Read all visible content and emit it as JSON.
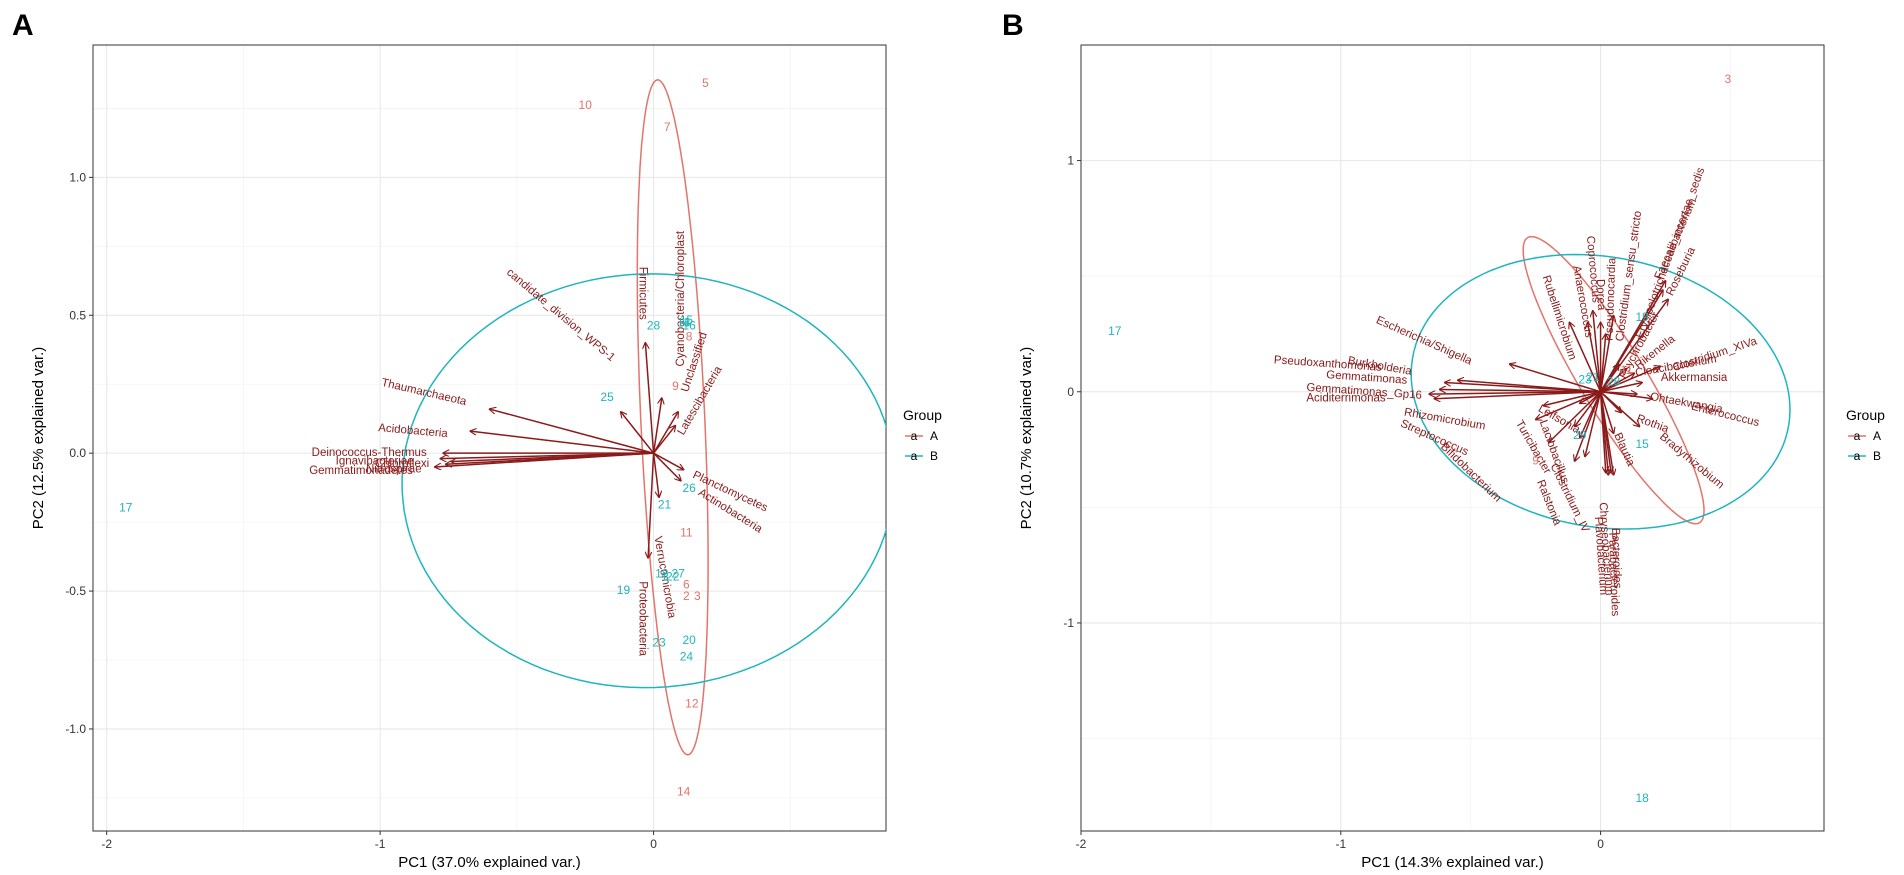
{
  "colors": {
    "groupA": "#E3746B",
    "groupB": "#1FB5BD",
    "loading": "#8B1A1A"
  },
  "legend": {
    "title": "Group",
    "items": [
      {
        "symbol": "a",
        "label": "A",
        "color": "#E3746B"
      },
      {
        "symbol": "a",
        "label": "B",
        "color": "#1FB5BD"
      }
    ]
  },
  "chart_data": [
    {
      "type": "scatter",
      "panel_label": "A",
      "xlabel": "PC1 (37.0% explained var.)",
      "ylabel": "PC2 (12.5% explained var.)",
      "xlim": [
        -2.05,
        0.85
      ],
      "ylim": [
        -1.37,
        1.48
      ],
      "xticks": [
        -2,
        -1,
        0
      ],
      "xtick_labels": [
        "-2",
        "-1",
        "0"
      ],
      "yticks": [
        -1.0,
        -0.5,
        0.0,
        0.5,
        1.0
      ],
      "ytick_labels": [
        "-1.0",
        "-0.5",
        "0.0",
        "0.5",
        "1.0"
      ],
      "points": [
        {
          "label": "1",
          "group": "B",
          "x": 0.04,
          "y": -0.45
        },
        {
          "label": "2",
          "group": "A",
          "x": 0.12,
          "y": -0.52
        },
        {
          "label": "3",
          "group": "A",
          "x": 0.16,
          "y": -0.52
        },
        {
          "label": "4",
          "group": "B",
          "x": 0.12,
          "y": 0.47
        },
        {
          "label": "5",
          "group": "A",
          "x": 0.19,
          "y": 1.34
        },
        {
          "label": "6",
          "group": "A",
          "x": 0.12,
          "y": -0.48
        },
        {
          "label": "7",
          "group": "A",
          "x": 0.05,
          "y": 1.18
        },
        {
          "label": "8",
          "group": "A",
          "x": 0.13,
          "y": 0.42
        },
        {
          "label": "9",
          "group": "A",
          "x": 0.08,
          "y": 0.24
        },
        {
          "label": "10",
          "group": "A",
          "x": -0.25,
          "y": 1.26
        },
        {
          "label": "11",
          "group": "A",
          "x": 0.12,
          "y": -0.29
        },
        {
          "label": "12",
          "group": "A",
          "x": 0.14,
          "y": -0.91
        },
        {
          "label": "13",
          "group": "B",
          "x": 0.11,
          "y": 0.47
        },
        {
          "label": "14",
          "group": "A",
          "x": 0.11,
          "y": -1.23
        },
        {
          "label": "15",
          "group": "B",
          "x": 0.12,
          "y": 0.48
        },
        {
          "label": "16",
          "group": "B",
          "x": 0.13,
          "y": 0.46
        },
        {
          "label": "17",
          "group": "B",
          "x": -1.93,
          "y": -0.2
        },
        {
          "label": "18",
          "group": "B",
          "x": 0.03,
          "y": -0.44
        },
        {
          "label": "19",
          "group": "B",
          "x": -0.11,
          "y": -0.5
        },
        {
          "label": "20",
          "group": "B",
          "x": 0.13,
          "y": -0.68
        },
        {
          "label": "21",
          "group": "B",
          "x": 0.04,
          "y": -0.19
        },
        {
          "label": "22",
          "group": "B",
          "x": 0.07,
          "y": -0.45
        },
        {
          "label": "23",
          "group": "B",
          "x": 0.02,
          "y": -0.69
        },
        {
          "label": "24",
          "group": "B",
          "x": 0.12,
          "y": -0.74
        },
        {
          "label": "25",
          "group": "B",
          "x": -0.17,
          "y": 0.2
        },
        {
          "label": "26",
          "group": "B",
          "x": 0.13,
          "y": -0.13
        },
        {
          "label": "27",
          "group": "B",
          "x": 0.09,
          "y": -0.44
        },
        {
          "label": "28",
          "group": "B",
          "x": 0.0,
          "y": 0.46
        }
      ],
      "ellipses": [
        {
          "group": "A",
          "cx": 0.07,
          "cy": 0.13,
          "rx": 1.225,
          "ry": 0.117,
          "angle_deg": -87.4
        },
        {
          "group": "B",
          "cx": -0.02,
          "cy": -0.1,
          "rx": 0.9,
          "ry": 0.75,
          "angle_deg": 2
        }
      ],
      "loadings": [
        {
          "label": "candidate_division_WPS-1",
          "x": -0.12,
          "y": 0.15,
          "tx": -0.34,
          "ty": 0.5,
          "rot": 40
        },
        {
          "label": "Firmicutes",
          "x": -0.03,
          "y": 0.4,
          "tx": -0.04,
          "ty": 0.58,
          "rot": 90
        },
        {
          "label": "Cyanobacteria/Chloroplast",
          "x": 0.03,
          "y": 0.2,
          "tx": 0.1,
          "ty": 0.56,
          "rot": -90
        },
        {
          "label": "Unclassified",
          "x": 0.09,
          "y": 0.15,
          "tx": 0.15,
          "ty": 0.33,
          "rot": -72
        },
        {
          "label": "Latescibacteria",
          "x": 0.08,
          "y": 0.1,
          "tx": 0.17,
          "ty": 0.19,
          "rot": -60
        },
        {
          "label": "Thaumarchaeota",
          "x": -0.6,
          "y": 0.16,
          "tx": -0.84,
          "ty": 0.22,
          "rot": 13
        },
        {
          "label": "Acidobacteria",
          "x": -0.67,
          "y": 0.08,
          "tx": -0.88,
          "ty": 0.08,
          "rot": 5
        },
        {
          "label": "Deinococcus-Thermus",
          "x": -0.77,
          "y": 0.0,
          "tx": -1.04,
          "ty": 0.0,
          "rot": 0
        },
        {
          "label": "Ignavibacteriae",
          "x": -0.78,
          "y": -0.02,
          "tx": -1.02,
          "ty": -0.03,
          "rot": 0
        },
        {
          "label": "Gemmatimonadetes",
          "x": -0.8,
          "y": -0.05,
          "tx": -1.07,
          "ty": -0.065,
          "rot": 0
        },
        {
          "label": "Nitrospirae",
          "x": -0.76,
          "y": -0.04,
          "tx": -0.95,
          "ty": -0.06,
          "rot": 0
        },
        {
          "label": "Chloroflexi",
          "x": -0.74,
          "y": -0.03,
          "tx": -0.92,
          "ty": -0.04,
          "rot": 0
        },
        {
          "label": "Planctomycetes",
          "x": 0.11,
          "y": -0.06,
          "tx": 0.28,
          "ty": -0.14,
          "rot": 25
        },
        {
          "label": "Actinobacteria",
          "x": 0.1,
          "y": -0.1,
          "tx": 0.28,
          "ty": -0.21,
          "rot": 32
        },
        {
          "label": "Verrucomicrobia",
          "x": 0.02,
          "y": -0.16,
          "tx": 0.04,
          "ty": -0.45,
          "rot": 80
        },
        {
          "label": "Proteobacteria",
          "x": -0.02,
          "y": -0.38,
          "tx": -0.04,
          "ty": -0.6,
          "rot": 90
        }
      ]
    },
    {
      "type": "scatter",
      "panel_label": "B",
      "xlabel": "PC1 (14.3% explained var.)",
      "ylabel": "PC2 (10.7% explained var.)",
      "xlim": [
        -2.0,
        0.86
      ],
      "ylim": [
        -1.9,
        1.5
      ],
      "xticks": [
        -2,
        -1,
        0
      ],
      "xtick_labels": [
        "-2",
        "-1",
        "0"
      ],
      "yticks": [
        -1,
        0,
        1
      ],
      "ytick_labels": [
        "-1",
        "0",
        "1"
      ],
      "points": [
        {
          "label": "3",
          "group": "A",
          "x": 0.49,
          "y": 1.35
        },
        {
          "label": "17",
          "group": "B",
          "x": -1.87,
          "y": 0.26
        },
        {
          "label": "18",
          "group": "B",
          "x": 0.16,
          "y": -1.76
        },
        {
          "label": "9",
          "group": "A",
          "x": -0.25,
          "y": -0.3
        },
        {
          "label": "29",
          "group": "B",
          "x": -0.08,
          "y": -0.19
        },
        {
          "label": "15",
          "group": "B",
          "x": 0.16,
          "y": -0.23
        },
        {
          "label": "19",
          "group": "B",
          "x": 0.16,
          "y": 0.32
        },
        {
          "label": "11",
          "group": "A",
          "x": 0.1,
          "y": 0.09
        },
        {
          "label": "28",
          "group": "B",
          "x": 0.05,
          "y": 0.04
        },
        {
          "label": "23",
          "group": "B",
          "x": -0.06,
          "y": 0.05
        },
        {
          "label": "21",
          "group": "B",
          "x": -0.03,
          "y": 0.06
        }
      ],
      "ellipses": [
        {
          "group": "A",
          "cx": 0.05,
          "cy": 0.05,
          "rx": 0.7,
          "ry": 0.13,
          "angle_deg": -62
        },
        {
          "group": "B",
          "cx": 0.0,
          "cy": 0.0,
          "rx": 0.74,
          "ry": 0.58,
          "angle_deg": -16
        }
      ],
      "loadings": [
        {
          "label": "Clostridium_sensu_stricto",
          "x": 0.05,
          "y": 0.33,
          "tx": 0.11,
          "ty": 0.5,
          "rot": -82
        },
        {
          "label": "Erysipelotrichaceae_incertae_sedis",
          "x": 0.25,
          "y": 0.48,
          "tx": 0.27,
          "ty": 0.6,
          "rot": -70
        },
        {
          "label": "Faecalibacterium",
          "x": 0.24,
          "y": 0.44,
          "tx": 0.29,
          "ty": 0.66,
          "rot": -66
        },
        {
          "label": "Roseburia",
          "x": 0.26,
          "y": 0.4,
          "tx": 0.31,
          "ty": 0.52,
          "rot": -64
        },
        {
          "label": "Coprococcus",
          "x": -0.03,
          "y": 0.35,
          "tx": -0.03,
          "ty": 0.53,
          "rot": 85
        },
        {
          "label": "Anaerococcus",
          "x": -0.05,
          "y": 0.3,
          "tx": -0.07,
          "ty": 0.39,
          "rot": 80
        },
        {
          "label": "Rubellimicrobium",
          "x": -0.12,
          "y": 0.3,
          "tx": -0.16,
          "ty": 0.32,
          "rot": 72
        },
        {
          "label": "Dorea",
          "x": 0.0,
          "y": 0.3,
          "tx": 0.0,
          "ty": 0.42,
          "rot": 88
        },
        {
          "label": "Pseudonocardia",
          "x": 0.02,
          "y": 0.25,
          "tx": 0.04,
          "ty": 0.4,
          "rot": -88
        },
        {
          "label": "Escherichia/Shigella",
          "x": -0.35,
          "y": 0.12,
          "tx": -0.68,
          "ty": 0.22,
          "rot": 24
        },
        {
          "label": "Burkholderia",
          "x": -0.55,
          "y": 0.05,
          "tx": -0.85,
          "ty": 0.11,
          "rot": 10
        },
        {
          "label": "Pseudoxanthomonas",
          "x": -0.6,
          "y": 0.04,
          "tx": -1.05,
          "ty": 0.12,
          "rot": 4
        },
        {
          "label": "Gemmatimonas",
          "x": -0.62,
          "y": 0.01,
          "tx": -0.9,
          "ty": 0.06,
          "rot": 4
        },
        {
          "label": "Gemmatimonas_Gp16",
          "x": -0.66,
          "y": -0.01,
          "tx": -0.91,
          "ty": 0.0,
          "rot": 4
        },
        {
          "label": "Aciditerrimonas",
          "x": -0.64,
          "y": -0.03,
          "tx": -0.98,
          "ty": -0.03,
          "rot": 0
        },
        {
          "label": "Rhizomicrobium",
          "x": -0.22,
          "y": -0.06,
          "tx": -0.6,
          "ty": -0.12,
          "rot": 10
        },
        {
          "label": "Streptococcus",
          "x": -0.25,
          "y": -0.12,
          "tx": -0.64,
          "ty": -0.2,
          "rot": 24
        },
        {
          "label": "Bifidobacterium",
          "x": -0.2,
          "y": -0.22,
          "tx": -0.5,
          "ty": -0.35,
          "rot": 44
        },
        {
          "label": "Leifsonia",
          "x": -0.08,
          "y": -0.05,
          "tx": -0.16,
          "ty": -0.12,
          "rot": 30
        },
        {
          "label": "Lactobacillus",
          "x": -0.08,
          "y": -0.2,
          "tx": -0.18,
          "ty": -0.26,
          "rot": 70
        },
        {
          "label": "Turicibacter",
          "x": -0.1,
          "y": -0.15,
          "tx": -0.26,
          "ty": -0.24,
          "rot": 60
        },
        {
          "label": "Ralstonia",
          "x": -0.1,
          "y": -0.3,
          "tx": -0.2,
          "ty": -0.48,
          "rot": 68
        },
        {
          "label": "Clostridium_IV",
          "x": -0.06,
          "y": -0.28,
          "tx": -0.12,
          "ty": -0.46,
          "rot": 64
        },
        {
          "label": "Blautia",
          "x": 0.05,
          "y": -0.18,
          "tx": 0.09,
          "ty": -0.25,
          "rot": 66
        },
        {
          "label": "Rothia",
          "x": 0.08,
          "y": -0.09,
          "tx": 0.2,
          "ty": -0.14,
          "rot": 20
        },
        {
          "label": "Bradyrhizobium",
          "x": 0.15,
          "y": -0.15,
          "tx": 0.35,
          "ty": -0.3,
          "rot": 40
        },
        {
          "label": "Enterococcus",
          "x": 0.2,
          "y": -0.03,
          "tx": 0.48,
          "ty": -0.1,
          "rot": 14
        },
        {
          "label": "Ohtaekwangia",
          "x": 0.14,
          "y": -0.01,
          "tx": 0.33,
          "ty": -0.05,
          "rot": 10
        },
        {
          "label": "Akkermansia",
          "x": 0.16,
          "y": 0.04,
          "tx": 0.36,
          "ty": 0.06,
          "rot": 0
        },
        {
          "label": "Clostridium_XIVa",
          "x": 0.23,
          "y": 0.11,
          "tx": 0.44,
          "ty": 0.16,
          "rot": -18
        },
        {
          "label": "Cloacibacterium",
          "x": 0.13,
          "y": 0.08,
          "tx": 0.29,
          "ty": 0.11,
          "rot": -10
        },
        {
          "label": "Rikenella",
          "x": 0.1,
          "y": 0.1,
          "tx": 0.21,
          "ty": 0.17,
          "rot": -38
        },
        {
          "label": "Psychrobacter",
          "x": 0.07,
          "y": 0.12,
          "tx": 0.15,
          "ty": 0.2,
          "rot": -62
        },
        {
          "label": "Flavobacterium",
          "x": 0.02,
          "y": -0.35,
          "tx": 0.0,
          "ty": -0.71,
          "rot": 86
        },
        {
          "label": "Chryseobacterium",
          "x": 0.03,
          "y": -0.36,
          "tx": 0.02,
          "ty": -0.68,
          "rot": 86
        },
        {
          "label": "Bacteroides",
          "x": 0.05,
          "y": -0.36,
          "tx": 0.06,
          "ty": -0.72,
          "rot": 88
        },
        {
          "label": "Parabacteroides",
          "x": 0.04,
          "y": -0.35,
          "tx": 0.05,
          "ty": -0.79,
          "rot": 88
        }
      ]
    }
  ]
}
